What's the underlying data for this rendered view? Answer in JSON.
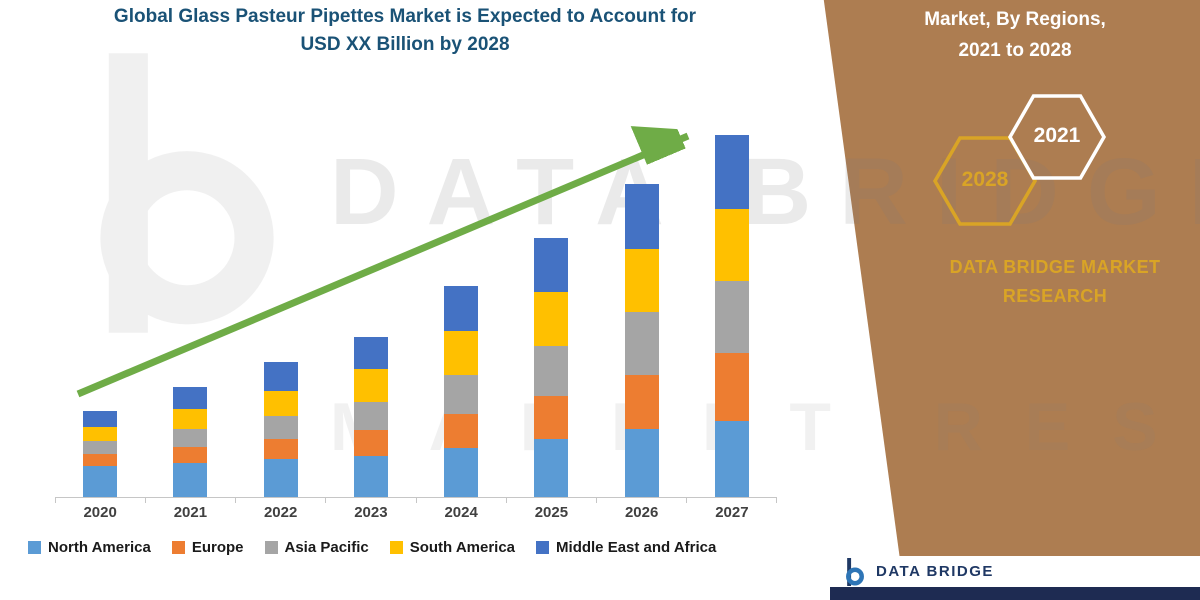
{
  "title": {
    "line1": "Global Glass Pasteur Pipettes Market is Expected to Account for",
    "line2": "USD XX Billion by 2028"
  },
  "right_panel": {
    "heading_line1": "Market, By Regions,",
    "heading_line2": "2021 to 2028",
    "hex_2028": "2028",
    "hex_2021": "2021",
    "brand_line1": "DATA BRIDGE MARKET",
    "brand_line2": "RESEARCH",
    "panel_color": "#AD7D51",
    "gold": "#D9A426"
  },
  "watermark": {
    "line1": "DATA BRIDGE",
    "line2": "MARKET RESEARCH"
  },
  "footer_logo": {
    "text": "DATA BRIDGE"
  },
  "chart_data": {
    "type": "bar",
    "stacked": true,
    "title": "Global Glass Pasteur Pipettes Market is Expected to Account for USD XX Billion by 2028",
    "xlabel": "",
    "ylabel": "",
    "value_note": "values are relative estimates read from bar heights; actual figures shown as USD XX Billion",
    "categories": [
      "2020",
      "2021",
      "2022",
      "2023",
      "2024",
      "2025",
      "2026",
      "2027"
    ],
    "series": [
      {
        "name": "North America",
        "color": "#5B9BD5",
        "values": [
          8.5,
          9.5,
          10.5,
          11.5,
          13.5,
          16,
          19,
          21
        ]
      },
      {
        "name": "Europe",
        "color": "#ED7D31",
        "values": [
          3.5,
          4.5,
          5.5,
          7,
          9.5,
          12,
          15,
          19
        ]
      },
      {
        "name": "Asia Pacific",
        "color": "#A5A5A5",
        "values": [
          3.5,
          5,
          6.5,
          8,
          11,
          14,
          17.5,
          20
        ]
      },
      {
        "name": "South America",
        "color": "#FFC000",
        "values": [
          4,
          5.5,
          7,
          9,
          12,
          15,
          17.5,
          20
        ]
      },
      {
        "name": "Middle East and Africa",
        "color": "#4472C4",
        "values": [
          4.5,
          6,
          8,
          9,
          12.5,
          15,
          18,
          20.5
        ]
      }
    ],
    "legend_position": "bottom",
    "grid": false,
    "trend_arrow": true,
    "trend_arrow_color": "#6FAC47"
  }
}
